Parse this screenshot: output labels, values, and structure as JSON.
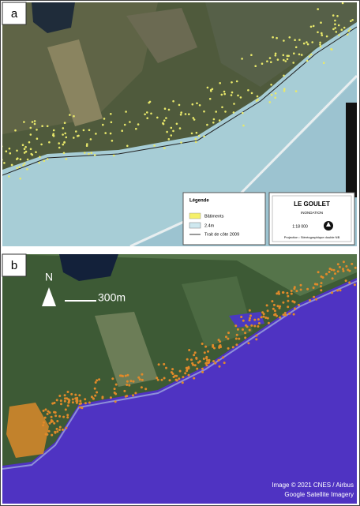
{
  "panels": [
    {
      "label": "a",
      "legend": {
        "title": "Légende",
        "items": [
          "Bâtiments",
          "2.4m",
          "Trait de côte 2009"
        ]
      },
      "title_block": {
        "title": "LE GOULET",
        "subtitle": "INONDATION",
        "scale": "1:18 000",
        "projection": "Projection : Stéréographique double NB"
      }
    },
    {
      "label": "b",
      "north": "N",
      "scale_bar": "300m",
      "credits": [
        "Image © 2021 CNES / Airbus",
        "Google Satellite Imagery"
      ]
    }
  ]
}
